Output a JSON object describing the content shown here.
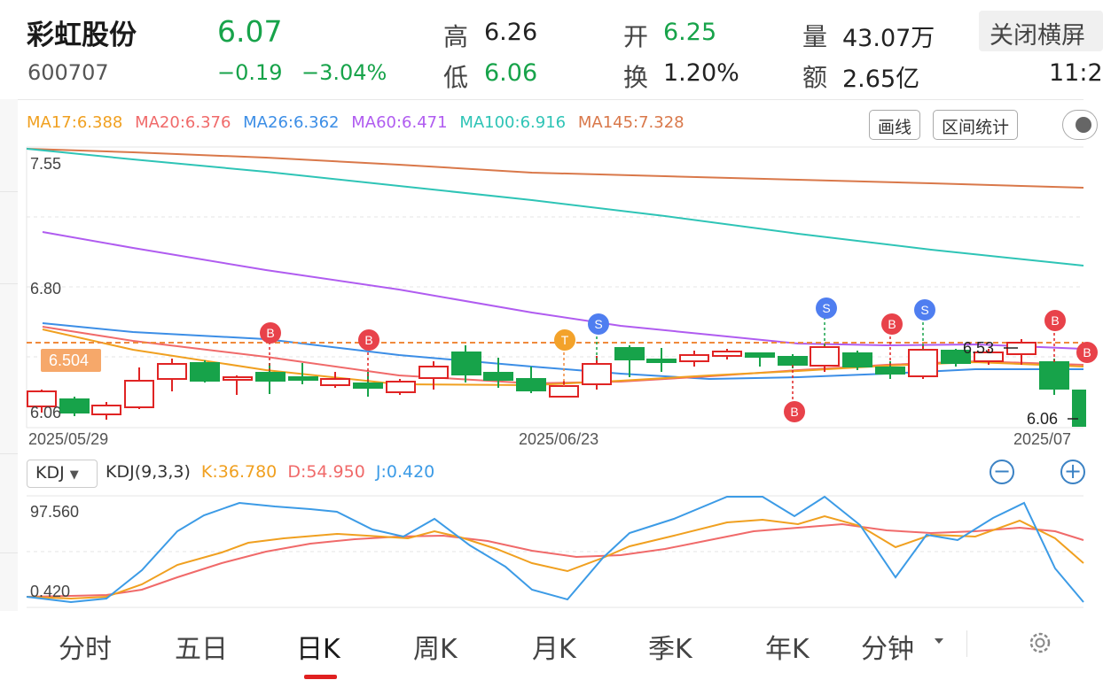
{
  "header": {
    "name": "彩虹股份",
    "code": "600707",
    "price": "6.07",
    "change": "−0.19",
    "change_pct": "−3.04%",
    "high_label": "高",
    "high": "6.26",
    "low_label": "低",
    "low": "6.06",
    "open_label": "开",
    "open": "6.25",
    "turnover_label": "换",
    "turnover": "1.20%",
    "volume_label": "量",
    "volume": "43.07万",
    "amount_label": "额",
    "amount": "2.65亿",
    "close_landscape": "关闭横屏",
    "time": "11:2",
    "colors": {
      "up": "#e02424",
      "down": "#17a34a"
    }
  },
  "ma_legend": [
    {
      "text": "MA17:6.388",
      "color": "#f0a020"
    },
    {
      "text": "MA20:6.376",
      "color": "#f06a6a"
    },
    {
      "text": "MA26:6.362",
      "color": "#3c8ee6"
    },
    {
      "text": "MA60:6.471",
      "color": "#b05cf0"
    },
    {
      "text": "MA100:6.916",
      "color": "#2ec4b6"
    },
    {
      "text": "MA145:7.328",
      "color": "#d9784a"
    }
  ],
  "tools": {
    "draw": "画线",
    "stats": "区间统计"
  },
  "kline": {
    "y_labels": [
      "7.55",
      "6.80",
      "6.06"
    ],
    "x_labels": [
      "2025/05/29",
      "2025/06/23",
      "2025/07"
    ],
    "current_price_tag": "6.504",
    "high_tag": "6.53",
    "low_tag": "6.06",
    "markers": [
      {
        "text": "B",
        "type": "buy"
      },
      {
        "text": "B",
        "type": "buy"
      },
      {
        "text": "T",
        "type": "t"
      },
      {
        "text": "S",
        "type": "sell"
      },
      {
        "text": "B",
        "type": "buy"
      },
      {
        "text": "S",
        "type": "sell"
      },
      {
        "text": "B",
        "type": "buy"
      },
      {
        "text": "S",
        "type": "sell"
      },
      {
        "text": "B",
        "type": "buy"
      },
      {
        "text": "B",
        "type": "buy"
      }
    ]
  },
  "kdj": {
    "selector": "KDJ",
    "params": "KDJ(9,3,3)",
    "k": "K:36.780",
    "d": "D:54.950",
    "j": "J:0.420",
    "y_top": "97.560",
    "y_bottom": "0.420",
    "colors": {
      "k": "#f0a020",
      "d": "#f06a6a",
      "j": "#3c9be6"
    }
  },
  "tabs": [
    "分时",
    "五日",
    "日K",
    "周K",
    "月K",
    "季K",
    "年K",
    "分钟"
  ],
  "active_tab": "日K"
}
